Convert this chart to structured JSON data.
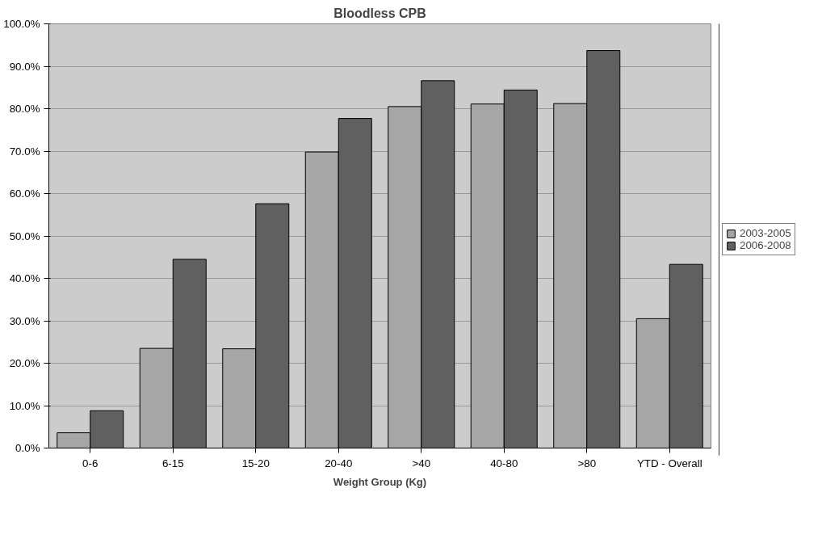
{
  "chart_data": {
    "type": "bar",
    "title": "Bloodless CPB",
    "xlabel": "Weight Group (Kg)",
    "categories": [
      "0-6",
      "6-15",
      "15-20",
      "20-40",
      ">40",
      "40-80",
      ">80",
      "YTD - Overall"
    ],
    "series": [
      {
        "name": "2003-2005",
        "color": "#a6a6a6",
        "values": [
          3.6,
          23.5,
          23.4,
          69.8,
          80.5,
          81.1,
          81.2,
          30.5
        ]
      },
      {
        "name": "2006-2008",
        "color": "#606060",
        "values": [
          8.8,
          44.5,
          57.6,
          77.7,
          86.6,
          84.4,
          93.7,
          43.3
        ]
      }
    ],
    "ylim": [
      0,
      100
    ],
    "yticks": [
      {
        "value": 0,
        "label": "0.0%"
      },
      {
        "value": 10,
        "label": "10.0%"
      },
      {
        "value": 20,
        "label": "20.0%"
      },
      {
        "value": 30,
        "label": "30.0%"
      },
      {
        "value": 40,
        "label": "40.0%"
      },
      {
        "value": 50,
        "label": "50.0%"
      },
      {
        "value": 60,
        "label": "60.0%"
      },
      {
        "value": 70,
        "label": "70.0%"
      },
      {
        "value": 80,
        "label": "80.0%"
      },
      {
        "value": 90,
        "label": "90.0%"
      },
      {
        "value": 100,
        "label": "100.0%"
      }
    ],
    "grid": "y",
    "legend": "right"
  }
}
